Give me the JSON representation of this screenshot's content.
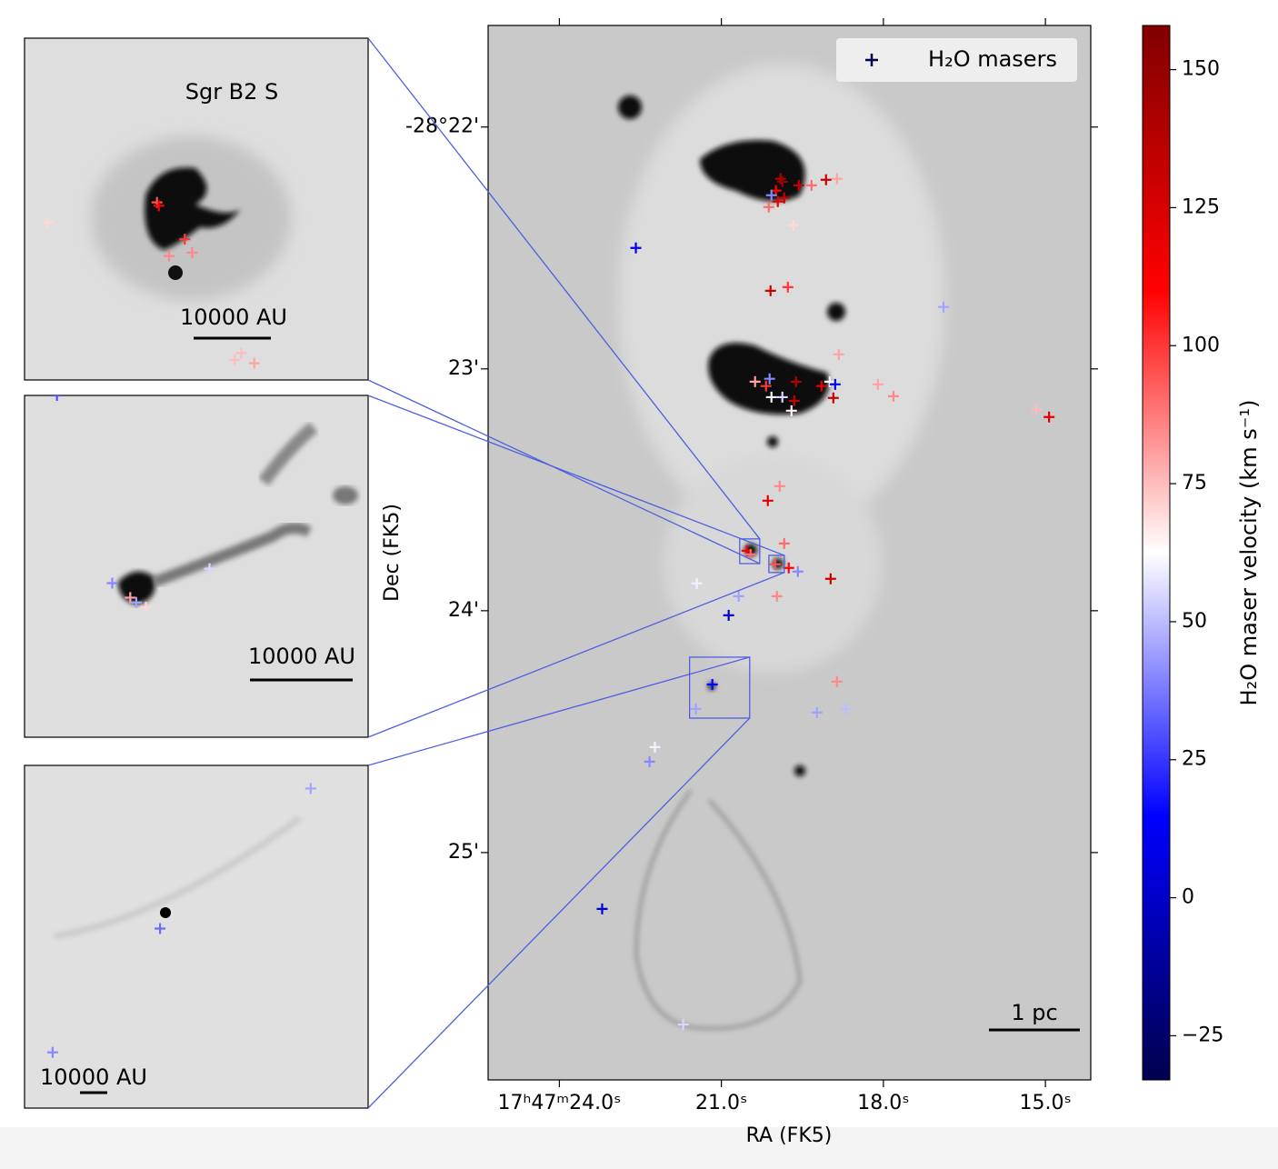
{
  "chart_data": {
    "type": "scatter",
    "xlabel": "RA (FK5)",
    "ylabel": "Dec (FK5)",
    "xlim": [
      25.32,
      14.16
    ],
    "ylim": [
      25.94,
      21.58
    ],
    "xticks": [
      {
        "value": 24,
        "label": "17ʰ47ᵐ24.0ˢ"
      },
      {
        "value": 21,
        "label": "21.0ˢ"
      },
      {
        "value": 18,
        "label": "18.0ˢ"
      },
      {
        "value": 15,
        "label": "15.0ˢ"
      }
    ],
    "yticks": [
      {
        "value": 22,
        "label": "-28°22'"
      },
      {
        "value": 23,
        "label": "23'"
      },
      {
        "value": 24,
        "label": "24'"
      },
      {
        "value": 25,
        "label": "25'"
      }
    ],
    "legend": "upper right",
    "scalebar": "1 pc",
    "series": [
      {
        "name": "H₂O masers",
        "color": "#00004d",
        "x": [
          22.584,
          19.904,
          19.871,
          19.989,
          20.073,
          19.955,
          20.123,
          19.837,
          19.567,
          19.331,
          19.062,
          18.859,
          19.668,
          20.09,
          19.769,
          16.887,
          18.826,
          20.376,
          20.174,
          20.107,
          20.073,
          19.871,
          19.618,
          19.651,
          19.702,
          18.994,
          18.893,
          19.146,
          18.927,
          18.101,
          17.814,
          15.168,
          14.932,
          19.921,
          20.14,
          19.837,
          20.528,
          20.46,
          20.005,
          19.753,
          19.584,
          18.977,
          21.455,
          20.68,
          19.972,
          20.865,
          18.859,
          21.168,
          21.472,
          19.23,
          18.691,
          22.23,
          22.331,
          23.208,
          21.708
        ],
        "y": [
          22.5,
          22.214,
          22.226,
          22.263,
          22.282,
          22.308,
          22.331,
          22.293,
          22.241,
          22.241,
          22.218,
          22.214,
          22.406,
          22.677,
          22.662,
          22.744,
          22.94,
          23.053,
          23.071,
          23.041,
          23.117,
          23.117,
          23.053,
          23.132,
          23.173,
          23.053,
          23.064,
          23.071,
          23.12,
          23.064,
          23.113,
          23.169,
          23.199,
          23.485,
          23.545,
          23.722,
          23.752,
          23.767,
          23.808,
          23.823,
          23.838,
          23.868,
          23.887,
          23.94,
          23.94,
          24.019,
          24.293,
          24.305,
          24.406,
          24.421,
          24.406,
          24.564,
          24.624,
          25.233,
          25.711
        ],
        "c": [
          10,
          140,
          150,
          110,
          40,
          120,
          90,
          130,
          130,
          90,
          130,
          80,
          70,
          130,
          100,
          45,
          80,
          80,
          100,
          40,
          60,
          55,
          140,
          130,
          65,
          65,
          10,
          120,
          130,
          80,
          85,
          75,
          120,
          85,
          120,
          90,
          110,
          90,
          95,
          110,
          40,
          130,
          60,
          45,
          85,
          0,
          85,
          15,
          45,
          45,
          50,
          60,
          40,
          5,
          55
        ]
      }
    ],
    "colorbar": {
      "label": "H₂O maser velocity (km s⁻¹)",
      "vlim": [
        -33,
        158
      ],
      "ticks": [
        {
          "value": -25,
          "label": "−25"
        },
        0,
        25,
        50,
        75,
        100,
        125,
        150
      ],
      "colors": [
        "#00004d",
        "#0000ff",
        "#ffffff",
        "#ff0000",
        "#800000"
      ]
    },
    "insets": [
      {
        "title": "Sgr B2 S",
        "scalebar": "10000 AU",
        "xlim": [
          20.661,
          20.29
        ],
        "ylim": [
          23.805,
          23.703
        ],
        "x": [
          20.636,
          20.518,
          20.516,
          20.488,
          20.48,
          20.505,
          20.434,
          20.427,
          20.413
        ],
        "y": [
          23.758,
          23.752,
          23.753,
          23.763,
          23.767,
          23.768,
          23.799,
          23.797,
          23.8
        ],
        "c": [
          70,
          95,
          110,
          100,
          85,
          85,
          75,
          75,
          80
        ]
      },
      {
        "scalebar": "10000 AU",
        "xlim": [
          20.121,
          19.835
        ],
        "ylim": [
          23.842,
          23.771
        ],
        "x": [
          20.048,
          19.967,
          20.033,
          20.028,
          20.02,
          20.094
        ],
        "y": [
          23.81,
          23.807,
          23.813,
          23.814,
          23.815,
          23.771
        ],
        "c": [
          40,
          55,
          80,
          45,
          70,
          30
        ]
      },
      {
        "scalebar": "10000 AU",
        "xlim": [
          21.589,
          20.476
        ],
        "ylim": [
          24.444,
          24.192
        ],
        "x": [
          20.662,
          21.15,
          21.498
        ],
        "y": [
          24.209,
          24.312,
          24.403
        ],
        "c": [
          45,
          35,
          40
        ]
      }
    ]
  }
}
